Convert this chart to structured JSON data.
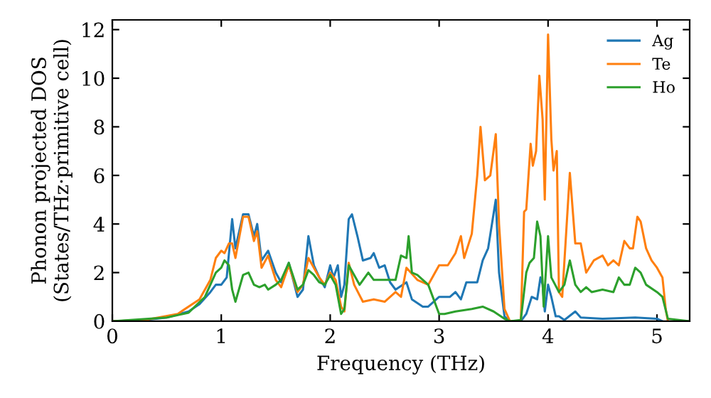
{
  "chart_data": {
    "type": "line",
    "xlabel": "Frequency (THz)",
    "ylabel": "Phonon projected DOS\n(States/THz·primitive cell)",
    "xlim": [
      0,
      5.3
    ],
    "ylim": [
      0,
      12.4
    ],
    "xticks": [
      0,
      1,
      2,
      3,
      4,
      5
    ],
    "yticks": [
      0,
      2,
      4,
      6,
      8,
      10,
      12
    ],
    "grid": false,
    "legend": "top right",
    "series": [
      {
        "name": "Ag",
        "color": "#1f77b4",
        "x": [
          0,
          0.3,
          0.5,
          0.7,
          0.8,
          0.9,
          0.95,
          1.0,
          1.05,
          1.1,
          1.13,
          1.2,
          1.25,
          1.3,
          1.33,
          1.37,
          1.43,
          1.5,
          1.55,
          1.62,
          1.7,
          1.75,
          1.8,
          1.85,
          1.9,
          1.95,
          2.0,
          2.03,
          2.07,
          2.1,
          2.13,
          2.17,
          2.2,
          2.25,
          2.3,
          2.37,
          2.4,
          2.45,
          2.5,
          2.55,
          2.6,
          2.7,
          2.75,
          2.85,
          2.9,
          3.0,
          3.1,
          3.15,
          3.2,
          3.25,
          3.35,
          3.4,
          3.45,
          3.52,
          3.55,
          3.6,
          3.65,
          3.75,
          3.8,
          3.85,
          3.9,
          3.93,
          3.95,
          3.97,
          4.0,
          4.03,
          4.07,
          4.1,
          4.15,
          4.25,
          4.3,
          4.5,
          4.8,
          5.0,
          5.05
        ],
        "values": [
          0,
          0.05,
          0.15,
          0.4,
          0.7,
          1.2,
          1.5,
          1.5,
          1.8,
          4.2,
          3.0,
          4.4,
          4.4,
          3.5,
          4.0,
          2.5,
          2.9,
          2.0,
          1.6,
          2.4,
          1.0,
          1.3,
          3.5,
          2.3,
          1.8,
          1.4,
          2.3,
          1.8,
          2.3,
          1.0,
          1.5,
          4.2,
          4.4,
          3.5,
          2.5,
          2.6,
          2.8,
          2.2,
          2.3,
          1.6,
          1.3,
          1.6,
          0.9,
          0.6,
          0.6,
          1.0,
          1.0,
          1.2,
          0.9,
          1.6,
          1.6,
          2.5,
          3.0,
          5.0,
          2.0,
          0.2,
          0.0,
          0.0,
          0.3,
          1.0,
          0.9,
          1.8,
          1.5,
          0.4,
          1.5,
          1.0,
          0.2,
          0.2,
          0.05,
          0.4,
          0.15,
          0.1,
          0.15,
          0.1,
          0.0
        ]
      },
      {
        "name": "Te",
        "color": "#ff7f0e",
        "x": [
          0,
          0.3,
          0.6,
          0.8,
          0.9,
          0.95,
          1.0,
          1.03,
          1.07,
          1.1,
          1.13,
          1.2,
          1.25,
          1.3,
          1.33,
          1.37,
          1.43,
          1.5,
          1.55,
          1.62,
          1.7,
          1.75,
          1.8,
          1.85,
          1.9,
          1.95,
          2.0,
          2.05,
          2.1,
          2.13,
          2.17,
          2.22,
          2.3,
          2.4,
          2.5,
          2.6,
          2.65,
          2.7,
          2.8,
          2.9,
          3.0,
          3.08,
          3.15,
          3.2,
          3.23,
          3.3,
          3.35,
          3.38,
          3.42,
          3.47,
          3.52,
          3.55,
          3.6,
          3.65,
          3.75,
          3.78,
          3.8,
          3.84,
          3.86,
          3.89,
          3.92,
          3.95,
          3.97,
          4.0,
          4.03,
          4.05,
          4.08,
          4.1,
          4.13,
          4.2,
          4.25,
          4.3,
          4.35,
          4.42,
          4.5,
          4.55,
          4.6,
          4.65,
          4.7,
          4.75,
          4.78,
          4.82,
          4.85,
          4.9,
          4.95,
          5.0,
          5.05,
          5.08,
          5.1
        ],
        "values": [
          0,
          0.05,
          0.3,
          0.9,
          1.7,
          2.6,
          2.9,
          2.8,
          3.2,
          3.2,
          2.6,
          4.3,
          4.3,
          3.3,
          3.7,
          2.2,
          2.7,
          1.7,
          1.4,
          2.3,
          1.2,
          1.5,
          2.6,
          2.2,
          1.8,
          1.5,
          2.0,
          1.7,
          0.6,
          0.4,
          2.4,
          1.5,
          0.8,
          0.9,
          0.8,
          1.2,
          1.0,
          2.2,
          1.7,
          1.5,
          2.3,
          2.3,
          2.8,
          3.5,
          2.6,
          3.6,
          6.0,
          8.0,
          5.8,
          6.0,
          7.7,
          4.0,
          0.5,
          0.0,
          0.0,
          4.5,
          4.6,
          7.3,
          6.4,
          7.0,
          10.1,
          8.3,
          5.0,
          11.8,
          7.5,
          6.2,
          7.0,
          1.2,
          1.0,
          6.1,
          3.2,
          3.2,
          2.0,
          2.5,
          2.7,
          2.3,
          2.5,
          2.3,
          3.3,
          3.0,
          3.0,
          4.3,
          4.1,
          3.0,
          2.5,
          2.2,
          1.8,
          0.5,
          0.0
        ]
      },
      {
        "name": "Ho",
        "color": "#2ca02c",
        "x": [
          0,
          0.5,
          0.7,
          0.85,
          0.95,
          1.0,
          1.03,
          1.07,
          1.1,
          1.13,
          1.2,
          1.25,
          1.3,
          1.35,
          1.4,
          1.43,
          1.5,
          1.55,
          1.62,
          1.7,
          1.75,
          1.8,
          1.85,
          1.9,
          1.95,
          2.0,
          2.05,
          2.1,
          2.13,
          2.17,
          2.22,
          2.27,
          2.35,
          2.4,
          2.5,
          2.6,
          2.65,
          2.7,
          2.72,
          2.75,
          2.8,
          2.9,
          3.0,
          3.05,
          3.15,
          3.3,
          3.4,
          3.5,
          3.6,
          3.65,
          3.75,
          3.8,
          3.83,
          3.87,
          3.9,
          3.93,
          3.96,
          4.0,
          4.03,
          4.1,
          4.15,
          4.2,
          4.25,
          4.3,
          4.35,
          4.4,
          4.5,
          4.6,
          4.65,
          4.7,
          4.75,
          4.8,
          4.85,
          4.9,
          5.0,
          5.05,
          5.1,
          5.3
        ],
        "values": [
          0,
          0.15,
          0.35,
          1.0,
          2.0,
          2.2,
          2.5,
          2.3,
          1.3,
          0.8,
          1.9,
          2.0,
          1.5,
          1.4,
          1.5,
          1.3,
          1.5,
          1.7,
          2.4,
          1.3,
          1.5,
          2.1,
          1.9,
          1.6,
          1.5,
          1.9,
          1.5,
          0.3,
          0.5,
          2.3,
          1.9,
          1.5,
          2.0,
          1.7,
          1.7,
          1.7,
          2.7,
          2.6,
          3.5,
          2.0,
          1.9,
          1.5,
          0.3,
          0.3,
          0.4,
          0.5,
          0.6,
          0.4,
          0.1,
          0.0,
          0.05,
          2.0,
          2.4,
          2.6,
          4.1,
          3.5,
          0.6,
          3.5,
          1.8,
          1.2,
          1.5,
          2.5,
          1.5,
          1.2,
          1.4,
          1.2,
          1.3,
          1.2,
          1.8,
          1.5,
          1.5,
          2.2,
          2.0,
          1.5,
          1.2,
          1.0,
          0.1,
          0.0
        ]
      }
    ]
  }
}
